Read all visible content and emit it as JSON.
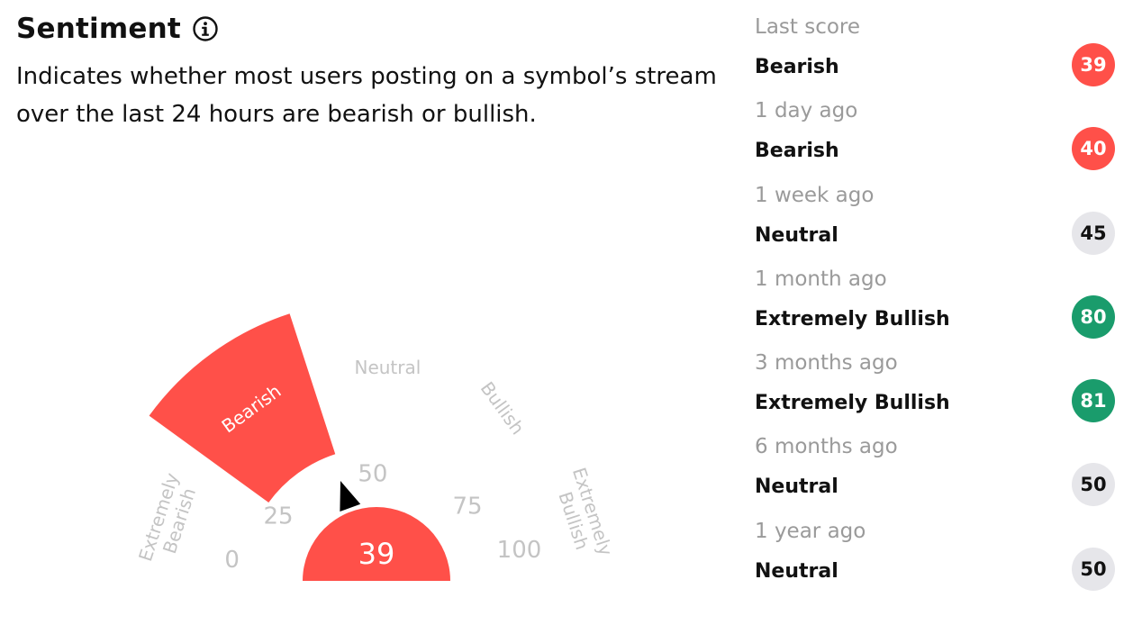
{
  "header": {
    "title": "Sentiment",
    "description": "Indicates whether most users posting on a symbol’s stream over the last 24 hours are bearish or bullish."
  },
  "icons": {
    "info": "info-circle-icon"
  },
  "gauge": {
    "score": "39",
    "score_value": 39,
    "active_zone": "Bearish",
    "ticks": [
      "0",
      "25",
      "50",
      "75",
      "100"
    ],
    "zones": {
      "extremely_bearish": [
        "Extremely",
        "Bearish"
      ],
      "bearish": "Bearish",
      "neutral": "Neutral",
      "bullish": "Bullish",
      "extremely_bullish": [
        "Extremely",
        "Bullish"
      ]
    },
    "colors": {
      "bearish": "#ff5049",
      "pointer": "#000000",
      "muted": "#c4c4c4"
    }
  },
  "history": [
    {
      "when": "Last score",
      "label": "Bearish",
      "score": "39",
      "bg": "#ff5049",
      "fg": "#ffffff"
    },
    {
      "when": "1 day ago",
      "label": "Bearish",
      "score": "40",
      "bg": "#ff5049",
      "fg": "#ffffff"
    },
    {
      "when": "1 week ago",
      "label": "Neutral",
      "score": "45",
      "bg": "#e6e6ea",
      "fg": "#111111"
    },
    {
      "when": "1 month ago",
      "label": "Extremely Bullish",
      "score": "80",
      "bg": "#1a9c6c",
      "fg": "#ffffff"
    },
    {
      "when": "3 months ago",
      "label": "Extremely Bullish",
      "score": "81",
      "bg": "#1a9c6c",
      "fg": "#ffffff"
    },
    {
      "when": "6 months ago",
      "label": "Neutral",
      "score": "50",
      "bg": "#e6e6ea",
      "fg": "#111111"
    },
    {
      "when": "1 year ago",
      "label": "Neutral",
      "score": "50",
      "bg": "#e6e6ea",
      "fg": "#111111"
    }
  ]
}
